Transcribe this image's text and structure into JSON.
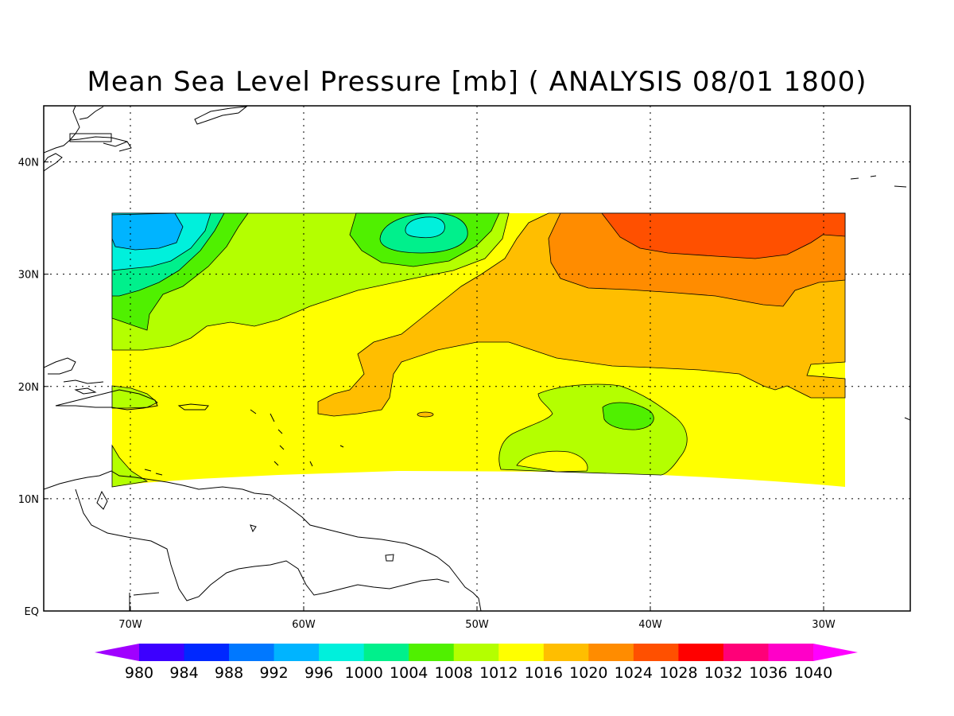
{
  "title": "Mean Sea Level Pressure [mb] ( ANALYSIS 08/01 1800)",
  "map": {
    "lon_range": [
      -75,
      -25
    ],
    "lat_range": [
      0,
      45
    ],
    "lon_ticks": [
      {
        "value": -70,
        "label": "70W"
      },
      {
        "value": -60,
        "label": "60W"
      },
      {
        "value": -50,
        "label": "50W"
      },
      {
        "value": -40,
        "label": "40W"
      },
      {
        "value": -30,
        "label": "30W"
      }
    ],
    "lat_ticks": [
      {
        "value": 0,
        "label": "EQ"
      },
      {
        "value": 10,
        "label": "10N"
      },
      {
        "value": 20,
        "label": "20N"
      },
      {
        "value": 30,
        "label": "30N"
      },
      {
        "value": 40,
        "label": "40N"
      }
    ],
    "grid": true,
    "field": "mean sea level pressure",
    "units": "mb",
    "data_extent": {
      "lon": [
        -71,
        -29
      ],
      "lat": [
        11,
        35.5
      ]
    },
    "features": [
      {
        "type": "low",
        "center": [
          -67.5,
          34
        ],
        "value_range": [
          996,
          1000
        ]
      },
      {
        "type": "low",
        "center": [
          -53,
          34.2
        ],
        "value_range": [
          1000,
          1004
        ]
      },
      {
        "type": "high",
        "center": [
          -35,
          33
        ],
        "value_range": [
          1024,
          1028
        ]
      },
      {
        "type": "low",
        "center": [
          -41,
          17.5
        ],
        "value_range": [
          1008,
          1012
        ]
      }
    ]
  },
  "colorbar": {
    "labels": [
      "980",
      "984",
      "988",
      "992",
      "996",
      "1000",
      "1004",
      "1008",
      "1012",
      "1016",
      "1020",
      "1024",
      "1028",
      "1032",
      "1036",
      "1040"
    ],
    "colors": [
      "#a000ff",
      "#3c00ff",
      "#0028ff",
      "#0078ff",
      "#00b4ff",
      "#00f0dc",
      "#00f08c",
      "#50f000",
      "#b4ff00",
      "#ffff00",
      "#ffbe00",
      "#ff8c00",
      "#ff5000",
      "#ff0000",
      "#ff0078",
      "#ff00c8",
      "#ff00ff"
    ],
    "extend": "both"
  }
}
